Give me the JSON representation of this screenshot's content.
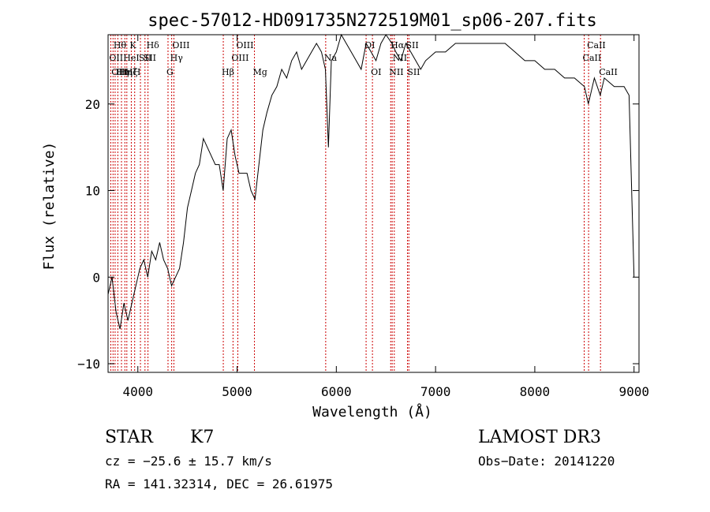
{
  "chart_data": {
    "type": "line",
    "title": "spec-57012-HD091735N272519M01_sp06-207.fits",
    "xlabel": "Wavelength (Å)",
    "ylabel": "Flux (relative)",
    "xlim": [
      3700,
      9050
    ],
    "ylim": [
      -11,
      28
    ],
    "x_ticks": [
      4000,
      5000,
      6000,
      7000,
      8000,
      9000
    ],
    "y_ticks": [
      -10,
      0,
      10,
      20
    ],
    "grid": false,
    "line_color": "#000000",
    "marker_color": "#cc0000",
    "series": [
      {
        "x": [
          3700,
          3740,
          3780,
          3820,
          3860,
          3900,
          3940,
          3980,
          4020,
          4060,
          4100,
          4140,
          4180,
          4220,
          4260,
          4300,
          4340,
          4380,
          4420,
          4460,
          4500,
          4540,
          4580,
          4620,
          4660,
          4700,
          4740,
          4780,
          4820,
          4860,
          4900,
          4940,
          4980,
          5020,
          5060,
          5100,
          5140,
          5180,
          5220,
          5260,
          5300,
          5350,
          5400,
          5450,
          5500,
          5550,
          5600,
          5650,
          5700,
          5750,
          5800,
          5850,
          5890,
          5920,
          5950,
          6000,
          6050,
          6100,
          6150,
          6200,
          6250,
          6300,
          6350,
          6400,
          6450,
          6500,
          6560,
          6600,
          6650,
          6700,
          6750,
          6800,
          6850,
          6900,
          7000,
          7100,
          7200,
          7300,
          7400,
          7500,
          7600,
          7700,
          7800,
          7900,
          8000,
          8100,
          8200,
          8300,
          8400,
          8500,
          8540,
          8600,
          8660,
          8700,
          8800,
          8900,
          8950,
          9000
        ],
        "y": [
          -2,
          0,
          -4,
          -6,
          -3,
          -5,
          -3,
          -1,
          1,
          2,
          0,
          3,
          2,
          4,
          2,
          1,
          -1,
          0,
          1,
          4,
          8,
          10,
          12,
          13,
          16,
          15,
          14,
          13,
          13,
          10,
          16,
          17,
          14,
          12,
          12,
          12,
          10,
          9,
          13,
          17,
          19,
          21,
          22,
          24,
          23,
          25,
          26,
          24,
          25,
          26,
          27,
          26,
          24,
          15,
          25,
          26,
          28,
          27,
          26,
          25,
          24,
          27,
          26,
          25,
          27,
          28,
          27,
          26,
          25,
          27,
          26,
          25,
          24,
          25,
          26,
          26,
          27,
          27,
          27,
          27,
          27,
          27,
          26,
          25,
          25,
          24,
          24,
          23,
          23,
          22,
          20,
          23,
          21,
          23,
          22,
          22,
          21,
          0
        ]
      }
    ],
    "line_markers": [
      {
        "x": 3727,
        "label": "OII",
        "row": 2
      },
      {
        "x": 3750,
        "label": "OII",
        "row": 3
      },
      {
        "x": 3771,
        "label": "Hθ",
        "row": 1
      },
      {
        "x": 3798,
        "label": "Hη",
        "row": 3
      },
      {
        "x": 3835,
        "label": "Hη",
        "row": 3
      },
      {
        "x": 3869,
        "label": "HeI",
        "row": 2
      },
      {
        "x": 3889,
        "label": "Hζ",
        "row": 3
      },
      {
        "x": 3934,
        "label": "K",
        "row": 1
      },
      {
        "x": 3968,
        "label": "H",
        "row": 3
      },
      {
        "x": 4026,
        "label": "SII",
        "row": 2
      },
      {
        "x": 4072,
        "label": "SII",
        "row": 2
      },
      {
        "x": 4102,
        "label": "Hδ",
        "row": 1
      },
      {
        "x": 4304,
        "label": "G",
        "row": 3
      },
      {
        "x": 4341,
        "label": "Hγ",
        "row": 2
      },
      {
        "x": 4363,
        "label": "OIII",
        "row": 1
      },
      {
        "x": 4861,
        "label": "Hβ",
        "row": 3
      },
      {
        "x": 4959,
        "label": "OIII",
        "row": 2
      },
      {
        "x": 5007,
        "label": "OIII",
        "row": 1
      },
      {
        "x": 5175,
        "label": "Mg",
        "row": 3
      },
      {
        "x": 5893,
        "label": "Na",
        "row": 2
      },
      {
        "x": 6300,
        "label": "OI",
        "row": 1
      },
      {
        "x": 6364,
        "label": "OI",
        "row": 3
      },
      {
        "x": 6548,
        "label": "NII",
        "row": 3
      },
      {
        "x": 6563,
        "label": "Hα",
        "row": 1
      },
      {
        "x": 6584,
        "label": "NII",
        "row": 2
      },
      {
        "x": 6717,
        "label": "SII",
        "row": 1
      },
      {
        "x": 6731,
        "label": "SII",
        "row": 3
      },
      {
        "x": 8498,
        "label": "CaII",
        "row": 2
      },
      {
        "x": 8542,
        "label": "CaII",
        "row": 1
      },
      {
        "x": 8662,
        "label": "CaII",
        "row": 3
      }
    ]
  },
  "info": {
    "class_label": "STAR",
    "subclass_label": "K7",
    "cz": "cz = −25.6 ± 15.7 km/s",
    "radec": "RA = 141.32314, DEC =  26.61975",
    "survey": "LAMOST DR3",
    "obsdate": "Obs−Date: 20141220"
  }
}
